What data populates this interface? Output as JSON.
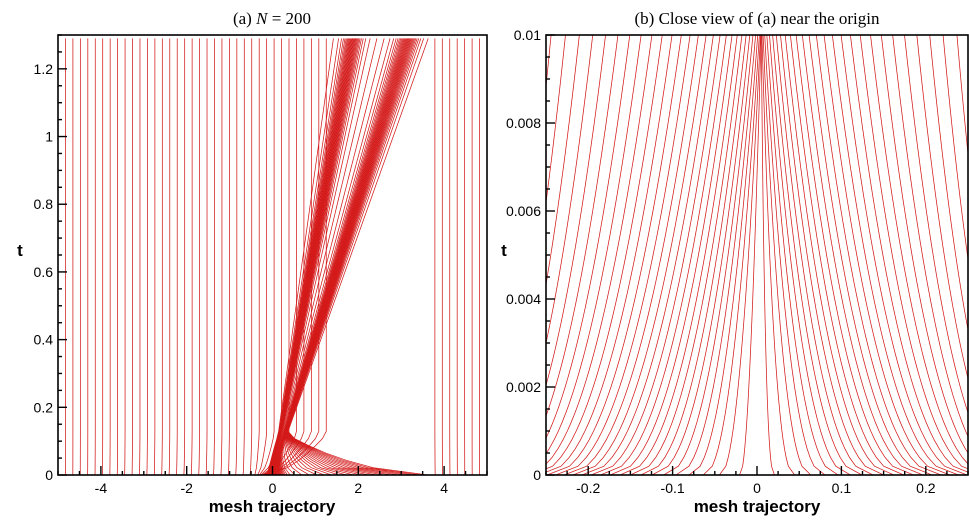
{
  "colors": {
    "trajectory": "#d41a1a",
    "axes": "#000000"
  },
  "chart_data": [
    {
      "type": "line",
      "title_prefix": "(a) ",
      "title_symbol": "N",
      "title_suffix": " = 200",
      "xlabel": "mesh trajectory",
      "ylabel": "t",
      "xlim": [
        -5,
        5
      ],
      "ylim": [
        0,
        1.3
      ],
      "x_ticks": [
        -4,
        -2,
        0,
        2,
        4
      ],
      "x_tick_labels": [
        "-4",
        "-2",
        "0",
        "2",
        "4"
      ],
      "y_ticks": [
        0,
        0.2,
        0.4,
        0.6,
        0.8,
        1.0,
        1.2
      ],
      "y_tick_labels": [
        "0",
        "0.2",
        "0.4",
        "0.6",
        "0.8",
        "1",
        "1.2"
      ],
      "grid": false,
      "mesh_points": 200,
      "t_end": 1.29,
      "series_description_values": {
        "left_shock_speed": 1.45,
        "right_wave_speed": 2.45,
        "cluster_start_x": 0.0
      }
    },
    {
      "type": "line",
      "title_prefix": "(b) Close view of (a) near the origin",
      "title_symbol": "",
      "title_suffix": "",
      "xlabel": "mesh trajectory",
      "ylabel": "t",
      "xlim": [
        -0.25,
        0.25
      ],
      "ylim": [
        0,
        0.01
      ],
      "x_ticks": [
        -0.2,
        -0.1,
        0,
        0.1,
        0.2
      ],
      "x_tick_labels": [
        "-0.2",
        "-0.1",
        "0",
        "0.1",
        "0.2"
      ],
      "y_ticks": [
        0,
        0.002,
        0.004,
        0.006,
        0.008,
        0.01
      ],
      "y_tick_labels": [
        "0",
        "0.002",
        "0.004",
        "0.006",
        "0.008",
        "0.01"
      ],
      "grid": false
    }
  ]
}
